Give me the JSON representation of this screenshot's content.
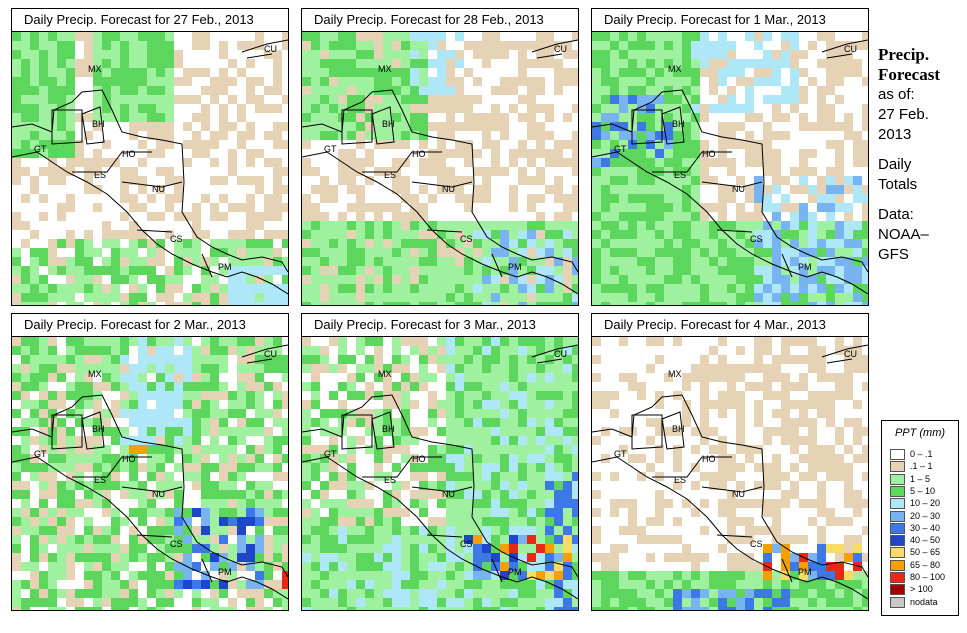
{
  "panels": [
    {
      "title": "Daily Precip. Forecast for  27 Feb., 2013"
    },
    {
      "title": "Daily Precip. Forecast for  28 Feb., 2013"
    },
    {
      "title": "Daily Precip. Forecast for  1 Mar., 2013"
    },
    {
      "title": "Daily Precip. Forecast for  2 Mar., 2013"
    },
    {
      "title": "Daily Precip. Forecast for  3 Mar., 2013"
    },
    {
      "title": "Daily Precip. Forecast for  4 Mar., 2013"
    }
  ],
  "country_labels": [
    "CU",
    "MX",
    "BH",
    "GT",
    "HO",
    "ES",
    "NU",
    "CS",
    "PM"
  ],
  "sidebar": {
    "title_line1": "Precip.",
    "title_line2": "Forecast",
    "asof_line1": "as of:",
    "asof_line2": "27 Feb.",
    "asof_line3": "2013",
    "totals_line1": "Daily",
    "totals_line2": "Totals",
    "data_line1": "Data:",
    "data_line2": "NOAA–",
    "data_line3": "GFS"
  },
  "legend": {
    "title": "PPT (mm)",
    "items": [
      {
        "label": "0 – .1",
        "color": "#ffffff"
      },
      {
        "label": ".1 – 1",
        "color": "#e6d2b4"
      },
      {
        "label": "1 – 5",
        "color": "#9ff09f"
      },
      {
        "label": "5 – 10",
        "color": "#5dd65d"
      },
      {
        "label": "10 – 20",
        "color": "#aee8f8"
      },
      {
        "label": "20 – 30",
        "color": "#78b4f0"
      },
      {
        "label": "30 – 40",
        "color": "#3c78e6"
      },
      {
        "label": "40 – 50",
        "color": "#1e46c8"
      },
      {
        "label": "50 – 65",
        "color": "#f8dc64"
      },
      {
        "label": "65 – 80",
        "color": "#f5a000"
      },
      {
        "label": "80 – 100",
        "color": "#e62814"
      },
      {
        "label": "> 100",
        "color": "#a00000"
      },
      {
        "label": "nodata",
        "color": "#c8c8c8"
      }
    ]
  }
}
